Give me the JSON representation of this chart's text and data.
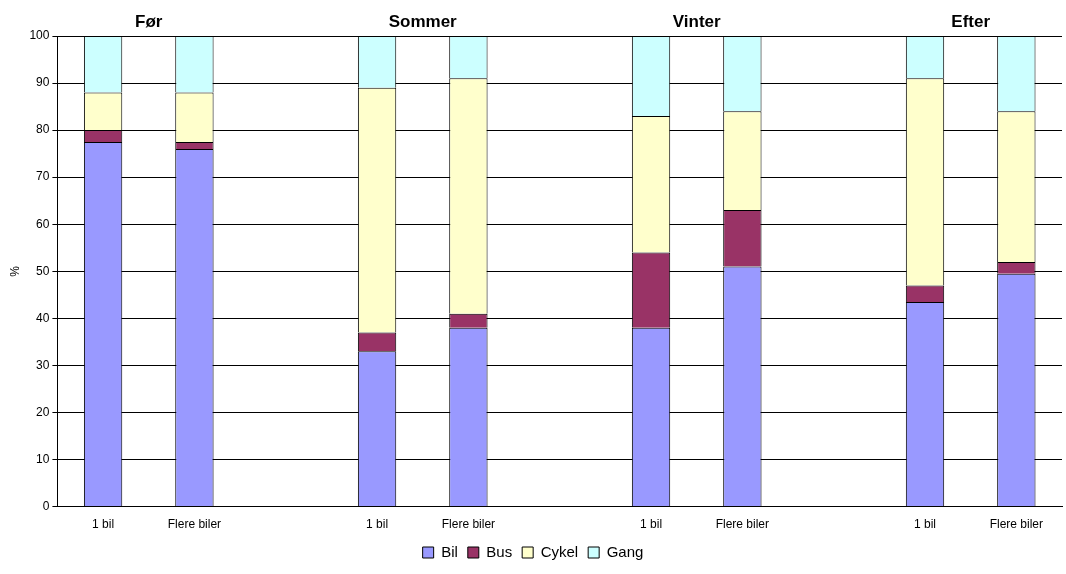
{
  "chart_data": {
    "type": "bar",
    "stacked": true,
    "ylabel": "%",
    "categories": [
      "1 bil",
      "Flere biler",
      null,
      "1 bil",
      "Flere biler",
      null,
      "1 bil",
      "Flere biler",
      null,
      "1 bil",
      "Flere biler"
    ],
    "series": [
      {
        "name": "Bil",
        "color": "#9999ff",
        "values": [
          77.5,
          76,
          null,
          33,
          38,
          null,
          38,
          51,
          null,
          43.5,
          49.5
        ]
      },
      {
        "name": "Bus",
        "color": "#993366",
        "values": [
          2.5,
          1.5,
          null,
          4,
          3,
          null,
          16,
          12,
          null,
          3.5,
          2.5
        ]
      },
      {
        "name": "Cykel",
        "color": "#ffffcc",
        "values": [
          8,
          10.5,
          null,
          52,
          50,
          null,
          29,
          21,
          null,
          44,
          32
        ]
      },
      {
        "name": "Gang",
        "color": "#ccffff",
        "values": [
          12,
          12,
          null,
          11,
          9,
          null,
          17,
          16,
          null,
          9,
          16
        ]
      }
    ],
    "annotations": [
      "Før",
      "Sommer",
      "Vinter",
      "Efter"
    ],
    "ylim": [
      0,
      100
    ],
    "yticks": [
      0,
      10,
      20,
      30,
      40,
      50,
      60,
      70,
      80,
      90,
      100
    ],
    "grid": "y",
    "legend": "bottom"
  }
}
